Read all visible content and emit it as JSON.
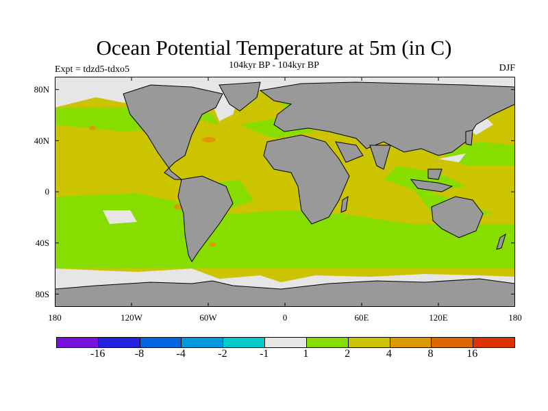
{
  "title": "Ocean Potential Temperature at 5m (in C)",
  "subtitle": "104kyr BP - 104kyr BP",
  "left_label": "Expt = tdzd5-tdxo5",
  "right_label": "DJF",
  "map": {
    "lat_ticks": [
      "80N",
      "40N",
      "0",
      "40S",
      "80S"
    ],
    "lon_ticks": [
      "180",
      "120W",
      "60W",
      "0",
      "60E",
      "120E",
      "180"
    ],
    "colors": {
      "land": "#999999",
      "ice": "#e6e6e6",
      "green": "#88dd00",
      "yellow": "#ccc400",
      "orange": "#dd9900",
      "dark_orange": "#dd6600",
      "coast": "#000000"
    }
  },
  "colorbar": {
    "colors": [
      "#7711dd",
      "#2222dd",
      "#0066dd",
      "#0099dd",
      "#00cccc",
      "#e6e6e6",
      "#88dd00",
      "#ccc400",
      "#dd9900",
      "#dd6600",
      "#dd3300"
    ],
    "labels": [
      "-16",
      "-8",
      "-4",
      "-2",
      "-1",
      "1",
      "2",
      "4",
      "8",
      "16"
    ]
  }
}
